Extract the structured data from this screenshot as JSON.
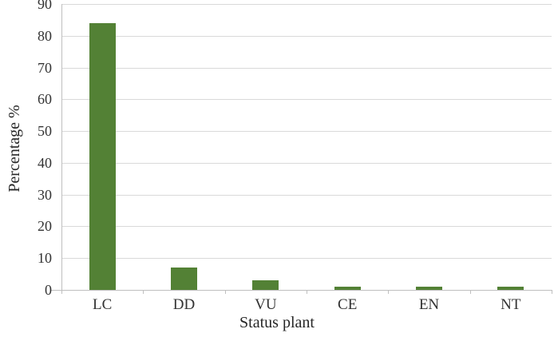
{
  "chart_data": {
    "type": "bar",
    "categories": [
      "LC",
      "DD",
      "VU",
      "CE",
      "EN",
      "NT"
    ],
    "values": [
      84,
      7,
      3,
      1,
      1,
      1
    ],
    "title": "",
    "xlabel": "Status plant",
    "ylabel": "Percentage %",
    "ylim": [
      0,
      90
    ],
    "yticks": [
      0,
      10,
      20,
      30,
      40,
      50,
      60,
      70,
      80,
      90
    ],
    "grid": true,
    "legend": false,
    "colors": {
      "bar": "#538135",
      "gridline": "#d9d9d9",
      "axis": "#bfbfbf",
      "tick_text": "#333333",
      "title_text": "#262626",
      "background": "#ffffff"
    }
  }
}
